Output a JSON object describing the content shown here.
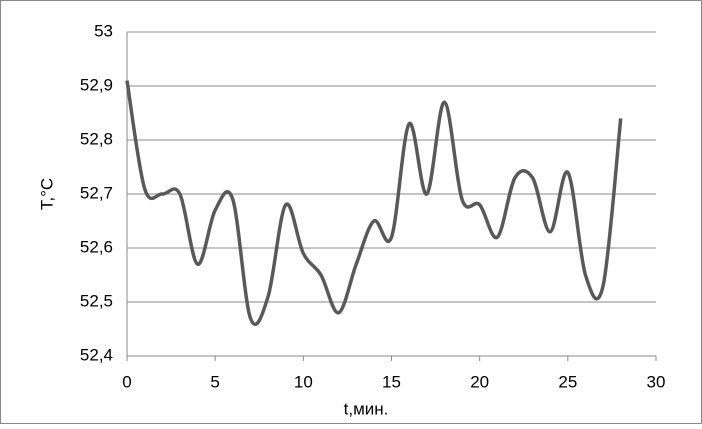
{
  "chart_data": {
    "type": "line",
    "xlabel": "t,мин.",
    "ylabel": "T,°C",
    "x": [
      0,
      1,
      2,
      3,
      4,
      5,
      6,
      7,
      8,
      9,
      10,
      11,
      12,
      13,
      14,
      15,
      16,
      17,
      18,
      19,
      20,
      21,
      22,
      23,
      24,
      25,
      26,
      27,
      28
    ],
    "series": [
      {
        "name": "T",
        "color": "#595959",
        "values": [
          52.91,
          52.71,
          52.7,
          52.7,
          52.57,
          52.67,
          52.69,
          52.47,
          52.51,
          52.68,
          52.59,
          52.55,
          52.48,
          52.57,
          52.65,
          52.62,
          52.83,
          52.7,
          52.87,
          52.69,
          52.68,
          52.62,
          52.73,
          52.73,
          52.63,
          52.74,
          52.55,
          52.53,
          52.84
        ]
      }
    ],
    "xlim": [
      0,
      30
    ],
    "xticks": [
      0,
      5,
      10,
      15,
      20,
      25,
      30
    ],
    "ylim": [
      52.4,
      53
    ],
    "yticks": [
      {
        "value": 52.4,
        "label": "52,4"
      },
      {
        "value": 52.5,
        "label": "52,5"
      },
      {
        "value": 52.6,
        "label": "52,6"
      },
      {
        "value": 52.7,
        "label": "52,7"
      },
      {
        "value": 52.8,
        "label": "52,8"
      },
      {
        "value": 52.9,
        "label": "52,9"
      },
      53
    ],
    "grid": true
  }
}
